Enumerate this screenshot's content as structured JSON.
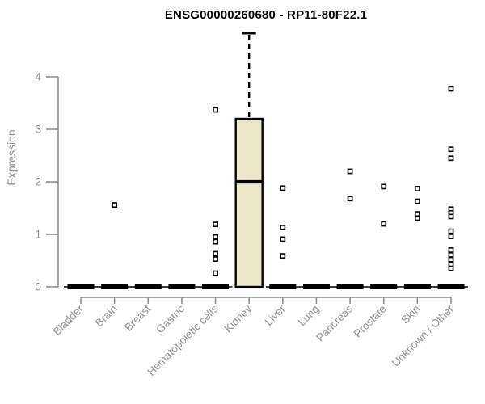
{
  "title": "ENSG00000260680 - RP11-80F22.1",
  "colors": {
    "background": "#ffffff",
    "axis": "#898989",
    "tick_text": "#8f8f8f",
    "title_text": "#000000",
    "box_fill": "#ece6cb",
    "box_stroke": "#000000",
    "outlier_fill": "#ffffff",
    "outlier_stroke": "#000000"
  },
  "chart_data": {
    "type": "boxplot",
    "title": "ENSG00000260680 - RP11-80F22.1",
    "xlabel": "",
    "ylabel": "Expression",
    "ylim": [
      0,
      4.9
    ],
    "yticks": [
      0,
      1,
      2,
      3,
      4
    ],
    "grid": false,
    "legend": false,
    "outlier_marker": "open-square",
    "categories": [
      "Bladder",
      "Brain",
      "Breast",
      "Gastric",
      "Hematopoietic cells",
      "Kidney",
      "Liver",
      "Lung",
      "Pancreas",
      "Prostate",
      "Skin",
      "Unknown / Other"
    ],
    "boxes": [
      {
        "category": "Bladder",
        "q1": 0,
        "median": 0,
        "q3": 0,
        "whisker_low": 0,
        "whisker_high": 0,
        "outliers": []
      },
      {
        "category": "Brain",
        "q1": 0,
        "median": 0,
        "q3": 0,
        "whisker_low": 0,
        "whisker_high": 0,
        "outliers": [
          1.56
        ]
      },
      {
        "category": "Breast",
        "q1": 0,
        "median": 0,
        "q3": 0,
        "whisker_low": 0,
        "whisker_high": 0,
        "outliers": []
      },
      {
        "category": "Gastric",
        "q1": 0,
        "median": 0,
        "q3": 0,
        "whisker_low": 0,
        "whisker_high": 0,
        "outliers": []
      },
      {
        "category": "Hematopoietic cells",
        "q1": 0,
        "median": 0,
        "q3": 0,
        "whisker_low": 0,
        "whisker_high": 0,
        "outliers": [
          3.37,
          1.19,
          0.95,
          0.86,
          0.63,
          0.53,
          0.26
        ]
      },
      {
        "category": "Kidney",
        "q1": 0,
        "median": 2.0,
        "q3": 3.2,
        "whisker_low": 0,
        "whisker_high": 4.83,
        "outliers": []
      },
      {
        "category": "Liver",
        "q1": 0,
        "median": 0,
        "q3": 0,
        "whisker_low": 0,
        "whisker_high": 0,
        "outliers": [
          1.88,
          1.13,
          0.91,
          0.59
        ]
      },
      {
        "category": "Lung",
        "q1": 0,
        "median": 0,
        "q3": 0,
        "whisker_low": 0,
        "whisker_high": 0,
        "outliers": []
      },
      {
        "category": "Pancreas",
        "q1": 0,
        "median": 0,
        "q3": 0,
        "whisker_low": 0,
        "whisker_high": 0,
        "outliers": [
          2.2,
          1.68
        ]
      },
      {
        "category": "Prostate",
        "q1": 0,
        "median": 0,
        "q3": 0,
        "whisker_low": 0,
        "whisker_high": 0,
        "outliers": [
          1.91,
          1.2
        ]
      },
      {
        "category": "Skin",
        "q1": 0,
        "median": 0,
        "q3": 0,
        "whisker_low": 0,
        "whisker_high": 0,
        "outliers": [
          1.87,
          1.63,
          1.39,
          1.31
        ]
      },
      {
        "category": "Unknown / Other",
        "q1": 0,
        "median": 0,
        "q3": 0,
        "whisker_low": 0,
        "whisker_high": 0,
        "outliers": [
          3.77,
          2.62,
          2.45,
          1.48,
          1.41,
          1.34,
          1.06,
          0.96,
          0.7,
          0.61,
          0.52,
          0.43,
          0.35
        ]
      }
    ]
  }
}
